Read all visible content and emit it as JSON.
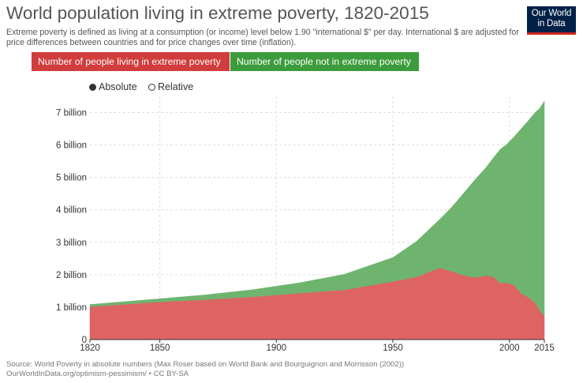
{
  "header": {
    "title": "World population living in extreme poverty, 1820-2015",
    "subtitle": "Extreme poverty is defined as living at a consumption (or income) level below 1.90 \"international $\" per day. International $ are adjusted for price differences between countries and for price changes over time (inflation).",
    "logo_line1": "Our World",
    "logo_line2": "in Data"
  },
  "legend": {
    "poverty_label": "Number of people living in extreme poverty",
    "not_poverty_label": "Number of people not in extreme poverty"
  },
  "toggles": {
    "absolute_label": "Absolute",
    "relative_label": "Relative",
    "selected": "Absolute"
  },
  "footer": {
    "source_line1": "Source: World Poverty in absolute numbers (Max Roser based on World Bank and Bourguignon and Morrisson (2002))",
    "source_line2": "OurWorldInData.org/optimism-pessimism/ • CC BY-SA"
  },
  "colors": {
    "poverty": "#d13c3c",
    "not_poverty": "#3c9c3c",
    "poverty_fill": "#de6464",
    "not_poverty_fill": "#6eb46e"
  },
  "chart_data": {
    "type": "area",
    "stacked": true,
    "title": "World population living in extreme poverty, 1820-2015",
    "x": [
      1820,
      1850,
      1870,
      1890,
      1910,
      1929,
      1950,
      1960,
      1970,
      1975,
      1980,
      1985,
      1990,
      1993,
      1996,
      1999,
      2002,
      2005,
      2008,
      2011,
      2013,
      2015
    ],
    "series": [
      {
        "name": "Number of people living in extreme poverty",
        "values": [
          1.0,
          1.15,
          1.22,
          1.31,
          1.42,
          1.52,
          1.78,
          1.92,
          2.2,
          2.1,
          1.98,
          1.9,
          1.96,
          1.93,
          1.73,
          1.74,
          1.67,
          1.41,
          1.3,
          1.12,
          0.89,
          0.7
        ]
      },
      {
        "name": "Number of people not in extreme poverty",
        "values": [
          0.08,
          0.11,
          0.16,
          0.23,
          0.33,
          0.49,
          0.75,
          1.1,
          1.5,
          1.96,
          2.5,
          3.01,
          3.35,
          3.66,
          4.13,
          4.29,
          4.58,
          5.09,
          5.44,
          5.88,
          6.24,
          6.65
        ]
      }
    ],
    "xlim": [
      1820,
      2015
    ],
    "ylim": [
      0,
      7500000000
    ],
    "x_ticks": [
      1820,
      1850,
      1900,
      1950,
      2000,
      2015
    ],
    "x_tick_labels": [
      "1820",
      "1850",
      "1900",
      "1950",
      "2000",
      "2015"
    ],
    "y_ticks": [
      0,
      1,
      2,
      3,
      4,
      5,
      6,
      7
    ],
    "y_tick_labels": [
      "0",
      "1 billion",
      "2 billion",
      "3 billion",
      "4 billion",
      "5 billion",
      "6 billion",
      "7 billion"
    ],
    "y_unit": "billion",
    "grid": true
  }
}
